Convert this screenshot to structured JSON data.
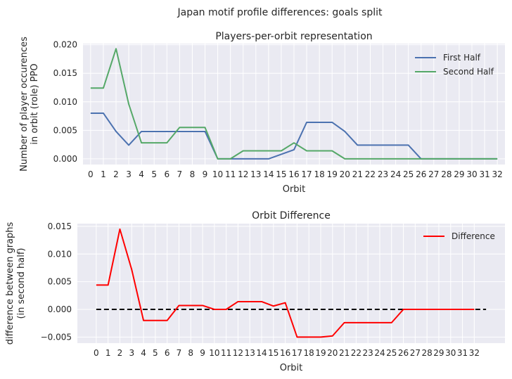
{
  "suptitle": "Japan motif profile differences: goals split",
  "chart_data": [
    {
      "type": "line",
      "title": "Players-per-orbit representation",
      "xlabel": "Orbit",
      "ylabel_lines": [
        "Number of player occurences",
        "in orbit (role) PPO"
      ],
      "x": [
        0,
        1,
        2,
        3,
        4,
        5,
        6,
        7,
        8,
        9,
        10,
        11,
        12,
        13,
        14,
        15,
        16,
        17,
        18,
        19,
        20,
        21,
        22,
        23,
        24,
        25,
        26,
        27,
        28,
        29,
        30,
        31,
        32
      ],
      "xlim": [
        -0.6,
        32.6
      ],
      "ylim": [
        -0.001,
        0.0202
      ],
      "yticks": [
        0.0,
        0.005,
        0.01,
        0.015,
        0.02
      ],
      "ytick_labels": [
        "0.000",
        "0.005",
        "0.010",
        "0.015",
        "0.020"
      ],
      "grid": true,
      "legend": "top-right",
      "series": [
        {
          "name": "First Half",
          "color": "#4c72b0",
          "values": [
            0.008,
            0.008,
            0.0048,
            0.0024,
            0.0048,
            0.0048,
            0.0048,
            0.0048,
            0.0048,
            0.0048,
            0.0,
            0.0,
            0.0,
            0.0,
            0.0,
            0.0008,
            0.0016,
            0.0064,
            0.0064,
            0.0064,
            0.0048,
            0.0024,
            0.0024,
            0.0024,
            0.0024,
            0.0024,
            0.0,
            0.0,
            0.0,
            0.0,
            0.0,
            0.0,
            0.0
          ]
        },
        {
          "name": "Second Half",
          "color": "#55a868",
          "values": [
            0.0124,
            0.0124,
            0.0193,
            0.0096,
            0.0028,
            0.0028,
            0.0028,
            0.0055,
            0.0055,
            0.0055,
            0.0,
            0.0,
            0.0014,
            0.0014,
            0.0014,
            0.0014,
            0.0028,
            0.0014,
            0.0014,
            0.0014,
            0.0,
            0.0,
            0.0,
            0.0,
            0.0,
            0.0,
            0.0,
            0.0,
            0.0,
            0.0,
            0.0,
            0.0,
            0.0
          ]
        }
      ]
    },
    {
      "type": "line",
      "title": "Orbit Difference",
      "xlabel": "Orbit",
      "ylabel_lines": [
        "difference between graphs",
        "(in second half)"
      ],
      "x": [
        0,
        1,
        2,
        3,
        4,
        5,
        6,
        7,
        8,
        9,
        10,
        11,
        12,
        13,
        14,
        15,
        16,
        17,
        18,
        19,
        20,
        21,
        22,
        23,
        24,
        25,
        26,
        27,
        28,
        29,
        30,
        31,
        32
      ],
      "xlim": [
        -1.6,
        34.6
      ],
      "ylim": [
        -0.0061,
        0.0155
      ],
      "yticks": [
        -0.005,
        0.0,
        0.005,
        0.01,
        0.015
      ],
      "ytick_labels": [
        "−0.005",
        "0.000",
        "0.005",
        "0.010",
        "0.015"
      ],
      "grid": true,
      "legend": "top-right",
      "baseline": {
        "y": 0.0,
        "x_range": [
          0,
          33
        ],
        "color": "#000000",
        "style": "dashed"
      },
      "series": [
        {
          "name": "Difference",
          "color": "#ff0000",
          "values": [
            0.0044,
            0.0044,
            0.0145,
            0.0072,
            -0.002,
            -0.002,
            -0.002,
            0.0007,
            0.0007,
            0.0007,
            0.0,
            0.0,
            0.0014,
            0.0014,
            0.0014,
            0.0006,
            0.0012,
            -0.005,
            -0.005,
            -0.005,
            -0.0048,
            -0.0024,
            -0.0024,
            -0.0024,
            -0.0024,
            -0.0024,
            0.0,
            0.0,
            0.0,
            0.0,
            0.0,
            0.0,
            0.0
          ]
        }
      ]
    }
  ]
}
